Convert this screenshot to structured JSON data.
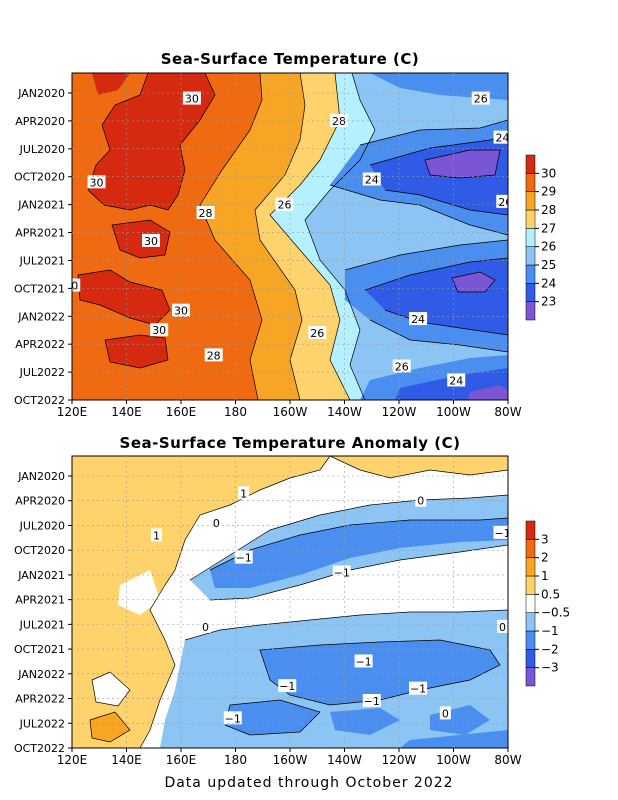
{
  "footer": "Data updated through October 2022",
  "chart_data": [
    {
      "type": "heatmap",
      "title": "Sea-Surface Temperature (C)",
      "xlabel": "",
      "ylabel": "",
      "x_ticks": [
        "120E",
        "140E",
        "160E",
        "180",
        "160W",
        "140W",
        "120W",
        "100W",
        "80W"
      ],
      "y_ticks": [
        "JAN2020",
        "APR2020",
        "JUL2020",
        "OCT2020",
        "JAN2021",
        "APR2021",
        "JUL2021",
        "OCT2021",
        "JAN2022",
        "APR2022",
        "JUL2022",
        "OCT2022"
      ],
      "colorbar": {
        "colors": [
          "#7a55d6",
          "#2f5be6",
          "#4a8ff0",
          "#8cc4f4",
          "#b5f0ff",
          "#ffd36b",
          "#f6a524",
          "#f06a12",
          "#d62a10"
        ],
        "labels": [
          "23",
          "24",
          "25",
          "26",
          "27",
          "28",
          "29",
          "30"
        ]
      },
      "contour_labels": [
        {
          "text": "30",
          "lon": 164,
          "t": 0.2
        },
        {
          "text": "26",
          "lon": 270,
          "t": 0.2
        },
        {
          "text": "28",
          "lon": 218,
          "t": 1.0
        },
        {
          "text": "24",
          "lon": 278,
          "t": 1.6
        },
        {
          "text": "30",
          "lon": 129,
          "t": 3.2
        },
        {
          "text": "24",
          "lon": 230,
          "t": 3.1
        },
        {
          "text": "26",
          "lon": 198,
          "t": 4.0
        },
        {
          "text": "28",
          "lon": 169,
          "t": 4.3
        },
        {
          "text": "26",
          "lon": 279,
          "t": 3.9
        },
        {
          "text": "30",
          "lon": 149,
          "t": 5.3
        },
        {
          "text": "0",
          "lon": 121,
          "t": 6.9
        },
        {
          "text": "30",
          "lon": 160,
          "t": 7.8
        },
        {
          "text": "24",
          "lon": 247,
          "t": 8.1
        },
        {
          "text": "30",
          "lon": 152,
          "t": 8.5
        },
        {
          "text": "26",
          "lon": 210,
          "t": 8.6
        },
        {
          "text": "28",
          "lon": 172,
          "t": 9.4
        },
        {
          "text": "26",
          "lon": 241,
          "t": 9.8
        },
        {
          "text": "24",
          "lon": 261,
          "t": 10.3
        }
      ]
    },
    {
      "type": "heatmap",
      "title": "Sea-Surface Temperature Anomaly (C)",
      "xlabel": "",
      "ylabel": "",
      "x_ticks": [
        "120E",
        "140E",
        "160E",
        "180",
        "160W",
        "140W",
        "120W",
        "100W",
        "80W"
      ],
      "y_ticks": [
        "JAN2020",
        "APR2020",
        "JUL2020",
        "OCT2020",
        "JAN2021",
        "APR2021",
        "JUL2021",
        "OCT2021",
        "JAN2022",
        "APR2022",
        "JUL2022",
        "OCT2022"
      ],
      "colorbar": {
        "colors": [
          "#7a55d6",
          "#2f5be6",
          "#4a8ff0",
          "#8cc4f4",
          "#ffffff",
          "#ffd36b",
          "#f6a524",
          "#f06a12",
          "#d62a10"
        ],
        "labels": [
          "−3",
          "−2",
          "−1",
          "−0.5",
          "0.5",
          "1",
          "2",
          "3"
        ]
      },
      "contour_labels": [
        {
          "text": "1",
          "lon": 183,
          "t": 0.7
        },
        {
          "text": "0",
          "lon": 248,
          "t": 1.0
        },
        {
          "text": "0",
          "lon": 173,
          "t": 1.9
        },
        {
          "text": "1",
          "lon": 151,
          "t": 2.4
        },
        {
          "text": "−1",
          "lon": 278,
          "t": 2.3
        },
        {
          "text": "−1",
          "lon": 183,
          "t": 3.3
        },
        {
          "text": "−1",
          "lon": 219,
          "t": 3.9
        },
        {
          "text": "0",
          "lon": 169,
          "t": 6.1
        },
        {
          "text": "0",
          "lon": 278,
          "t": 6.1
        },
        {
          "text": "−1",
          "lon": 227,
          "t": 7.5
        },
        {
          "text": "−1",
          "lon": 199,
          "t": 8.5
        },
        {
          "text": "−1",
          "lon": 247,
          "t": 8.6
        },
        {
          "text": "−1",
          "lon": 230,
          "t": 9.1
        },
        {
          "text": "0",
          "lon": 257,
          "t": 9.6
        },
        {
          "text": "−1",
          "lon": 179,
          "t": 9.8
        }
      ]
    }
  ]
}
